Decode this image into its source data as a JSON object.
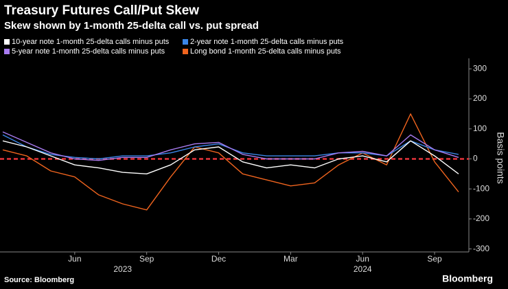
{
  "chart_data": {
    "type": "line",
    "title": "Treasury Futures Call/Put Skew",
    "subtitle": "Skew shown by 1-month 25-delta call vs. put spread",
    "y_label": "Basis points",
    "source": "Source: Bloomberg",
    "brand": "Bloomberg",
    "x": [
      "2023-03",
      "2023-04",
      "2023-05",
      "2023-06",
      "2023-07",
      "2023-08",
      "2023-09",
      "2023-10",
      "2023-11",
      "2023-12",
      "2024-01",
      "2024-02",
      "2024-03",
      "2024-04",
      "2024-05",
      "2024-06",
      "2024-07",
      "2024-08",
      "2024-09",
      "2024-10"
    ],
    "xlim": [
      "2023-03",
      "2024-10"
    ],
    "xticks": [
      {
        "value": "2023-06",
        "label": "Jun"
      },
      {
        "value": "2023-09",
        "label": "Sep"
      },
      {
        "value": "2023-12",
        "label": "Dec"
      },
      {
        "value": "2024-03",
        "label": "Mar"
      },
      {
        "value": "2024-06",
        "label": "Jun"
      },
      {
        "value": "2024-09",
        "label": "Sep"
      }
    ],
    "xyears": [
      {
        "value": "2023-08",
        "label": "2023"
      },
      {
        "value": "2024-06",
        "label": "2024"
      }
    ],
    "ylim": [
      -310,
      335
    ],
    "yticks": [
      -300,
      -200,
      -100,
      0,
      100,
      200,
      300
    ],
    "zero_line_color": "#e8343a",
    "series": [
      {
        "name": "10-year note 1-month 25-delta calls minus puts",
        "color": "#ffffff",
        "values": [
          60,
          40,
          10,
          -20,
          -30,
          -45,
          -50,
          -20,
          30,
          40,
          -10,
          -30,
          -20,
          -30,
          0,
          10,
          -10,
          60,
          10,
          -50
        ]
      },
      {
        "name": "2-year note 1-month 25-delta calls minus puts",
        "color": "#3a86e8",
        "values": [
          80,
          40,
          15,
          5,
          0,
          10,
          10,
          20,
          40,
          50,
          20,
          10,
          10,
          10,
          20,
          20,
          10,
          60,
          30,
          15
        ]
      },
      {
        "name": "5-year note 1-month 25-delta calls minus puts",
        "color": "#a97cf2",
        "values": [
          90,
          55,
          20,
          0,
          -5,
          5,
          5,
          30,
          50,
          55,
          15,
          0,
          0,
          0,
          20,
          25,
          10,
          80,
          30,
          5
        ]
      },
      {
        "name": "Long bond 1-month 25-delta calls minus puts",
        "color": "#f0641e",
        "values": [
          30,
          10,
          -40,
          -60,
          -120,
          -150,
          -170,
          -60,
          40,
          20,
          -50,
          -70,
          -90,
          -80,
          -20,
          20,
          -20,
          150,
          -10,
          -110
        ]
      }
    ]
  }
}
